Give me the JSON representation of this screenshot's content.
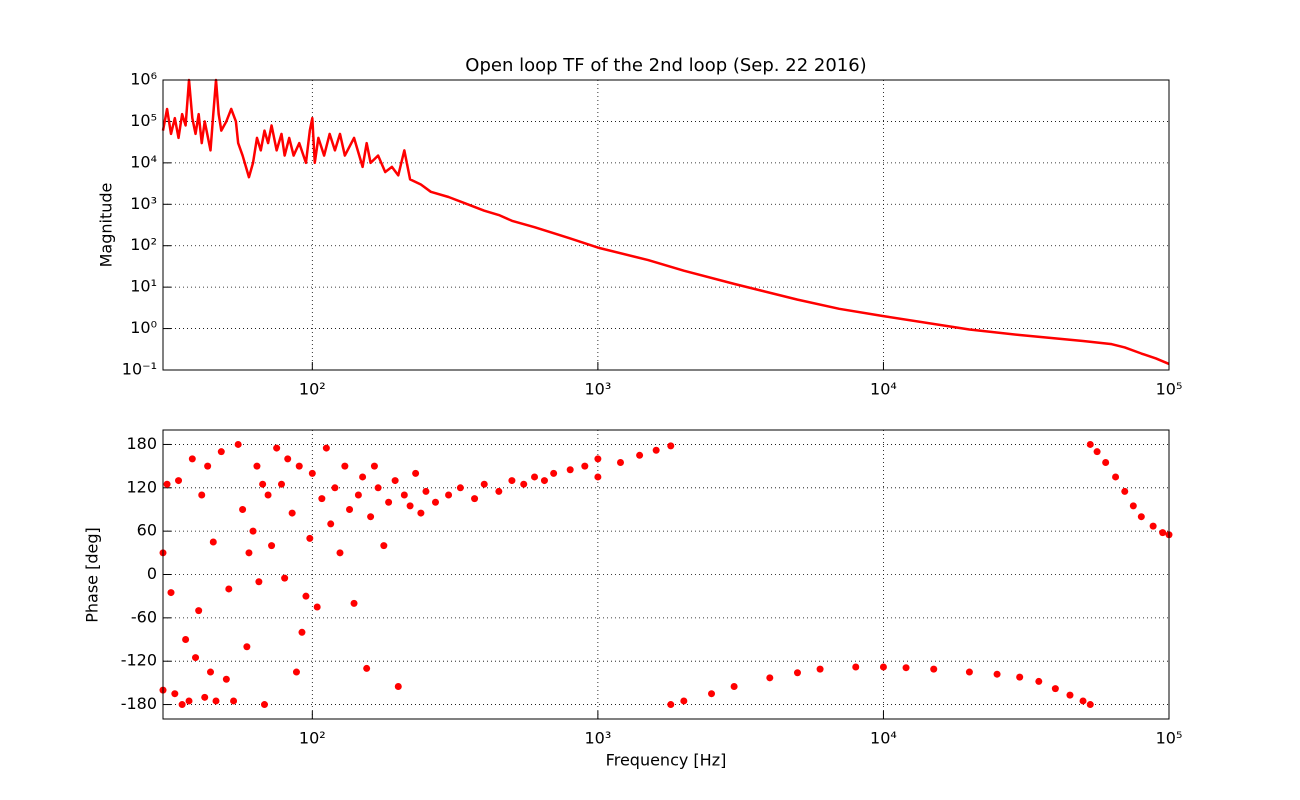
{
  "chart_data": [
    {
      "type": "line",
      "title": "Open loop TF of the 2nd loop (Sep. 22 2016)",
      "ylabel": "Magnitude",
      "xscale": "log",
      "yscale": "log",
      "grid": true,
      "color": "#ff0000",
      "xlim": [
        30,
        100000
      ],
      "ylim": [
        0.1,
        1000000
      ],
      "xticks": [
        {
          "value": 100,
          "label": "10²"
        },
        {
          "value": 1000,
          "label": "10³"
        },
        {
          "value": 10000,
          "label": "10⁴"
        },
        {
          "value": 100000,
          "label": "10⁵"
        }
      ],
      "yticks": [
        {
          "value": 0.1,
          "label": "10⁻¹"
        },
        {
          "value": 1,
          "label": "10⁰"
        },
        {
          "value": 10,
          "label": "10¹"
        },
        {
          "value": 100,
          "label": "10²"
        },
        {
          "value": 1000,
          "label": "10³"
        },
        {
          "value": 10000,
          "label": "10⁴"
        },
        {
          "value": 100000,
          "label": "10⁵"
        },
        {
          "value": 1000000,
          "label": "10⁶"
        }
      ],
      "x": [
        30,
        31,
        32,
        33,
        34,
        35,
        36,
        37,
        38,
        39,
        40,
        41,
        42,
        44,
        45,
        46,
        47,
        48,
        50,
        52,
        54,
        55,
        57,
        58,
        60,
        62,
        64,
        66,
        68,
        70,
        72,
        75,
        78,
        80,
        83,
        86,
        90,
        95,
        98,
        100,
        102,
        105,
        110,
        115,
        120,
        125,
        130,
        140,
        150,
        155,
        160,
        170,
        180,
        190,
        200,
        210,
        220,
        240,
        260,
        300,
        350,
        400,
        450,
        500,
        600,
        700,
        800,
        1000,
        1500,
        2000,
        3000,
        5000,
        7000,
        10000,
        20000,
        30000,
        50000,
        63000,
        70000,
        80000,
        90000,
        100000
      ],
      "values": [
        60000,
        200000,
        50000,
        120000,
        40000,
        150000,
        80000,
        1000000,
        120000,
        50000,
        150000,
        30000,
        100000,
        20000,
        150000,
        1000000,
        150000,
        60000,
        100000,
        200000,
        100000,
        30000,
        15000,
        10000,
        4500,
        10000,
        40000,
        20000,
        60000,
        30000,
        80000,
        20000,
        50000,
        15000,
        40000,
        15000,
        30000,
        10000,
        60000,
        120000,
        10000,
        40000,
        15000,
        50000,
        20000,
        50000,
        15000,
        40000,
        8000,
        30000,
        10000,
        15000,
        6000,
        8000,
        5000,
        20000,
        4000,
        3000,
        2000,
        1500,
        1000,
        700,
        550,
        400,
        280,
        200,
        150,
        90,
        45,
        25,
        12,
        5,
        3,
        2,
        0.95,
        0.7,
        0.5,
        0.42,
        0.35,
        0.25,
        0.19,
        0.14
      ]
    },
    {
      "type": "scatter",
      "xlabel": "Frequency [Hz]",
      "ylabel": "Phase [deg]",
      "xscale": "log",
      "grid": true,
      "color": "#ff0000",
      "xlim": [
        30,
        100000
      ],
      "ylim": [
        -200,
        200
      ],
      "xticks": [
        {
          "value": 100,
          "label": "10²"
        },
        {
          "value": 1000,
          "label": "10³"
        },
        {
          "value": 10000,
          "label": "10⁴"
        },
        {
          "value": 100000,
          "label": "10⁵"
        }
      ],
      "yticks": [
        -180,
        -120,
        -60,
        0,
        60,
        120,
        180
      ],
      "x": [
        30,
        30,
        31,
        32,
        33,
        34,
        35,
        36,
        37,
        38,
        39,
        40,
        41,
        42,
        43,
        44,
        45,
        46,
        48,
        50,
        51,
        53,
        55,
        57,
        59,
        60,
        62,
        64,
        65,
        67,
        68,
        70,
        72,
        75,
        78,
        80,
        82,
        85,
        88,
        90,
        92,
        95,
        98,
        100,
        104,
        108,
        112,
        116,
        120,
        125,
        130,
        135,
        140,
        145,
        150,
        155,
        160,
        165,
        170,
        178,
        185,
        195,
        200,
        210,
        220,
        230,
        240,
        250,
        270,
        300,
        330,
        370,
        400,
        450,
        500,
        550,
        600,
        650,
        700,
        800,
        900,
        1000,
        1000,
        1200,
        1400,
        1600,
        1800,
        1800,
        2000,
        2500,
        3000,
        4000,
        5000,
        6000,
        8000,
        10000,
        12000,
        15000,
        20000,
        25000,
        30000,
        35000,
        40000,
        45000,
        50000,
        53000,
        53000,
        56000,
        60000,
        65000,
        70000,
        75000,
        80000,
        88000,
        95000,
        100000
      ],
      "values": [
        30,
        -160,
        125,
        -25,
        -165,
        130,
        -180,
        -90,
        -175,
        160,
        -115,
        -50,
        110,
        -170,
        150,
        -135,
        45,
        -175,
        170,
        -145,
        -20,
        -175,
        180,
        90,
        -100,
        30,
        60,
        150,
        -10,
        125,
        -180,
        110,
        40,
        175,
        125,
        -5,
        160,
        85,
        -135,
        150,
        -80,
        -30,
        50,
        140,
        -45,
        105,
        175,
        70,
        120,
        30,
        150,
        90,
        -40,
        110,
        135,
        -130,
        80,
        150,
        120,
        40,
        100,
        130,
        -155,
        110,
        95,
        140,
        85,
        115,
        100,
        110,
        120,
        105,
        125,
        115,
        130,
        125,
        135,
        130,
        140,
        145,
        150,
        160,
        135,
        155,
        165,
        172,
        178,
        -180,
        -175,
        -165,
        -155,
        -143,
        -136,
        -131,
        -128,
        -128,
        -129,
        -131,
        -135,
        -138,
        -142,
        -148,
        -158,
        -167,
        -175,
        -180,
        180,
        170,
        155,
        135,
        115,
        95,
        80,
        67,
        58,
        55
      ]
    }
  ]
}
